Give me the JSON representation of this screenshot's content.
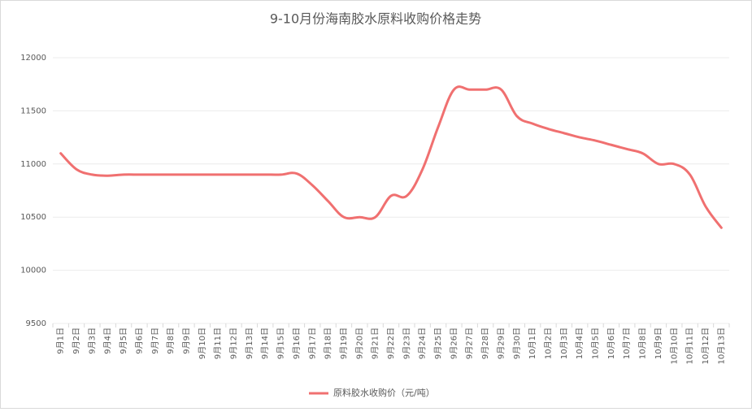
{
  "chart_data": {
    "type": "line",
    "title": "9-10月份海南胶水原料收购价格走势",
    "categories": [
      "9月1日",
      "9月2日",
      "9月3日",
      "9月4日",
      "9月5日",
      "9月6日",
      "9月7日",
      "9月8日",
      "9月9日",
      "9月10日",
      "9月11日",
      "9月12日",
      "9月13日",
      "9月14日",
      "9月15日",
      "9月16日",
      "9月17日",
      "9月18日",
      "9月19日",
      "9月20日",
      "9月21日",
      "9月22日",
      "9月23日",
      "9月24日",
      "9月25日",
      "9月26日",
      "9月27日",
      "9月28日",
      "9月29日",
      "9月30日",
      "10月1日",
      "10月2日",
      "10月3日",
      "10月4日",
      "10月5日",
      "10月6日",
      "10月7日",
      "10月8日",
      "10月9日",
      "10月10日",
      "10月11日",
      "10月12日",
      "10月13日"
    ],
    "series": [
      {
        "name": "原料胶水收购价（元/吨）",
        "color": "#f07070",
        "values": [
          11100,
          10950,
          10900,
          10890,
          10900,
          10900,
          10900,
          10900,
          10900,
          10900,
          10900,
          10900,
          10900,
          10900,
          10900,
          10910,
          10800,
          10650,
          10500,
          10500,
          10500,
          10700,
          10700,
          10950,
          11350,
          11700,
          11700,
          11700,
          11700,
          11450,
          11380,
          11330,
          11290,
          11250,
          11220,
          11180,
          11140,
          11100,
          11000,
          11000,
          10900,
          10600,
          10400
        ]
      }
    ],
    "ylim": [
      9500,
      12000
    ],
    "yticks": [
      9500,
      10000,
      10500,
      11000,
      11500,
      12000
    ],
    "grid": true,
    "legend": "bottom"
  }
}
